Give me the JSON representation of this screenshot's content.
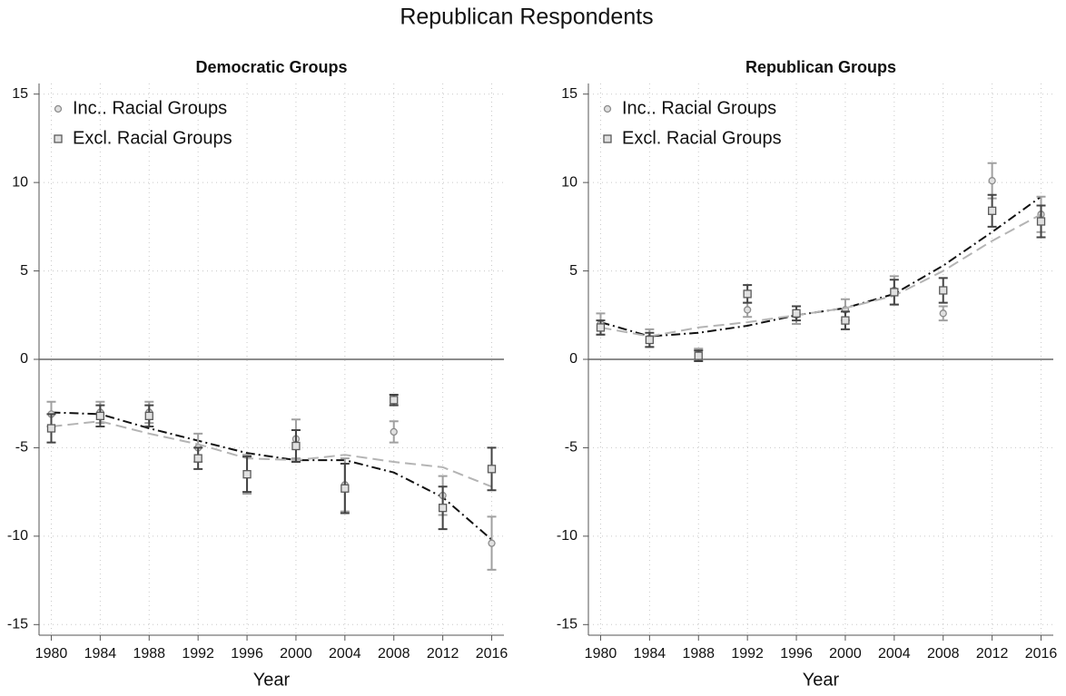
{
  "title": "Republican Respondents",
  "chart_data": [
    {
      "type": "scatter",
      "title": "Democratic Groups",
      "xlabel": "Year",
      "x": [
        1980,
        1984,
        1988,
        1992,
        1996,
        2000,
        2004,
        2008,
        2012,
        2016
      ],
      "xlim": [
        1979,
        2017
      ],
      "xticks": [
        1980,
        1984,
        1988,
        1992,
        1996,
        2000,
        2004,
        2008,
        2012,
        2016
      ],
      "ylim": [
        -15.6,
        15.6
      ],
      "yticks": [
        -15,
        -10,
        -5,
        0,
        5,
        10,
        15
      ],
      "grid": true,
      "zero_line": true,
      "legend": "upper left",
      "series": [
        {
          "name": "Inc.. Racial Groups",
          "marker": "circle",
          "color": "#8c8c8c",
          "bar_color": "#a0a0a0",
          "values": [
            -3.1,
            -3.0,
            -3.0,
            -5.0,
            -6.5,
            -4.5,
            -7.1,
            -4.1,
            -7.7,
            -10.4
          ],
          "errors": [
            0.7,
            0.6,
            0.6,
            0.8,
            1.1,
            1.1,
            1.5,
            0.6,
            1.1,
            1.5
          ],
          "fit": [
            -3.0,
            -3.1,
            -3.9,
            -4.6,
            -5.3,
            -5.7,
            -5.7,
            -6.4,
            -7.8,
            -10.2
          ],
          "fit_color": "#111111",
          "fit_dash": "10 4 2 4"
        },
        {
          "name": "Excl. Racial Groups",
          "marker": "square",
          "color": "#5a5a5a",
          "bar_color": "#444444",
          "values": [
            -3.9,
            -3.2,
            -3.2,
            -5.6,
            -6.5,
            -4.9,
            -7.3,
            -2.3,
            -8.4,
            -6.2
          ],
          "errors": [
            0.8,
            0.6,
            0.6,
            0.6,
            1.0,
            0.9,
            1.4,
            0.3,
            1.2,
            1.2
          ],
          "fit": [
            -3.8,
            -3.5,
            -4.2,
            -4.8,
            -5.6,
            -5.7,
            -5.4,
            -5.8,
            -6.1,
            -7.2
          ],
          "fit_color": "#b4b4b4",
          "fit_dash": "12 6"
        }
      ]
    },
    {
      "type": "scatter",
      "title": "Republican Groups",
      "xlabel": "Year",
      "x": [
        1980,
        1984,
        1988,
        1992,
        1996,
        2000,
        2004,
        2008,
        2012,
        2016
      ],
      "xlim": [
        1979,
        2017
      ],
      "xticks": [
        1980,
        1984,
        1988,
        1992,
        1996,
        2000,
        2004,
        2008,
        2012,
        2016
      ],
      "ylim": [
        -15.6,
        15.6
      ],
      "yticks": [
        -15,
        -10,
        -5,
        0,
        5,
        10,
        15
      ],
      "grid": true,
      "zero_line": true,
      "legend": "upper left",
      "series": [
        {
          "name": "Inc.. Racial Groups",
          "marker": "circle",
          "color": "#8c8c8c",
          "bar_color": "#a0a0a0",
          "values": [
            2.0,
            1.2,
            0.3,
            2.8,
            2.5,
            2.8,
            3.9,
            2.6,
            10.1,
            8.2
          ],
          "errors": [
            0.6,
            0.5,
            0.3,
            0.4,
            0.5,
            0.6,
            0.8,
            0.4,
            1.0,
            1.0
          ],
          "fit": [
            2.1,
            1.3,
            1.5,
            1.9,
            2.5,
            2.9,
            3.7,
            5.3,
            7.2,
            9.2
          ],
          "fit_color": "#111111",
          "fit_dash": "10 4 2 4"
        },
        {
          "name": "Excl. Racial Groups",
          "marker": "square",
          "color": "#5a5a5a",
          "bar_color": "#444444",
          "values": [
            1.8,
            1.1,
            0.2,
            3.7,
            2.6,
            2.2,
            3.8,
            3.9,
            8.4,
            7.8
          ],
          "errors": [
            0.4,
            0.4,
            0.3,
            0.5,
            0.4,
            0.5,
            0.7,
            0.7,
            0.9,
            0.9
          ],
          "fit": [
            1.8,
            1.3,
            1.8,
            2.1,
            2.5,
            2.9,
            3.6,
            5.0,
            6.7,
            8.2
          ],
          "fit_color": "#b4b4b4",
          "fit_dash": "12 6"
        }
      ]
    }
  ]
}
